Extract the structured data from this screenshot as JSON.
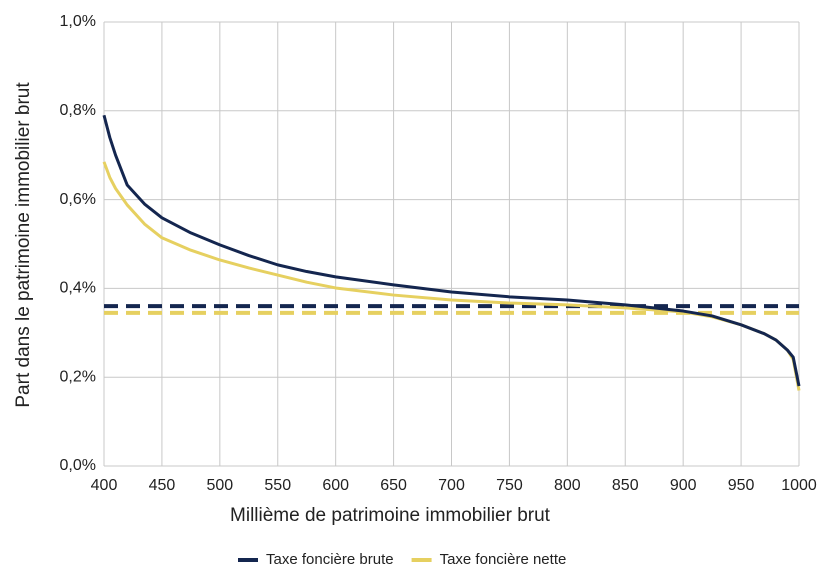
{
  "chart_data": {
    "type": "line",
    "xlabel": "Millième de patrimoine immobilier brut",
    "ylabel": "Part dans le patrimoine immobilier brut",
    "x": [
      400,
      405,
      410,
      420,
      435,
      450,
      475,
      500,
      525,
      550,
      575,
      600,
      650,
      700,
      750,
      800,
      850,
      900,
      925,
      950,
      970,
      980,
      990,
      995,
      1000
    ],
    "series": [
      {
        "name": "Taxe foncière brute",
        "color": "#14264f",
        "average": 0.36,
        "values": [
          0.79,
          0.74,
          0.7,
          0.633,
          0.59,
          0.559,
          0.525,
          0.498,
          0.474,
          0.453,
          0.438,
          0.426,
          0.408,
          0.392,
          0.381,
          0.374,
          0.363,
          0.349,
          0.338,
          0.318,
          0.298,
          0.284,
          0.261,
          0.245,
          0.18
        ]
      },
      {
        "name": "Taxe foncière nette",
        "color": "#e6d060",
        "average": 0.345,
        "values": [
          0.685,
          0.65,
          0.625,
          0.588,
          0.545,
          0.514,
          0.486,
          0.464,
          0.446,
          0.43,
          0.414,
          0.401,
          0.385,
          0.374,
          0.367,
          0.363,
          0.356,
          0.347,
          0.336,
          0.318,
          0.298,
          0.284,
          0.261,
          0.24,
          0.17
        ]
      }
    ],
    "xlim": [
      400,
      1000
    ],
    "xticks": [
      400,
      450,
      500,
      550,
      600,
      650,
      700,
      750,
      800,
      850,
      900,
      950,
      1000
    ],
    "ylim": [
      0,
      1
    ],
    "yticks": [
      {
        "value": 0,
        "label": "0,0%"
      },
      {
        "value": 0.2,
        "label": "0,2%"
      },
      {
        "value": 0.4,
        "label": "0,4%"
      },
      {
        "value": 0.6,
        "label": "0,6%"
      },
      {
        "value": 0.8,
        "label": "0,8%"
      },
      {
        "value": 1,
        "label": "1,0%"
      }
    ],
    "grid": true,
    "legend": "bottom"
  }
}
